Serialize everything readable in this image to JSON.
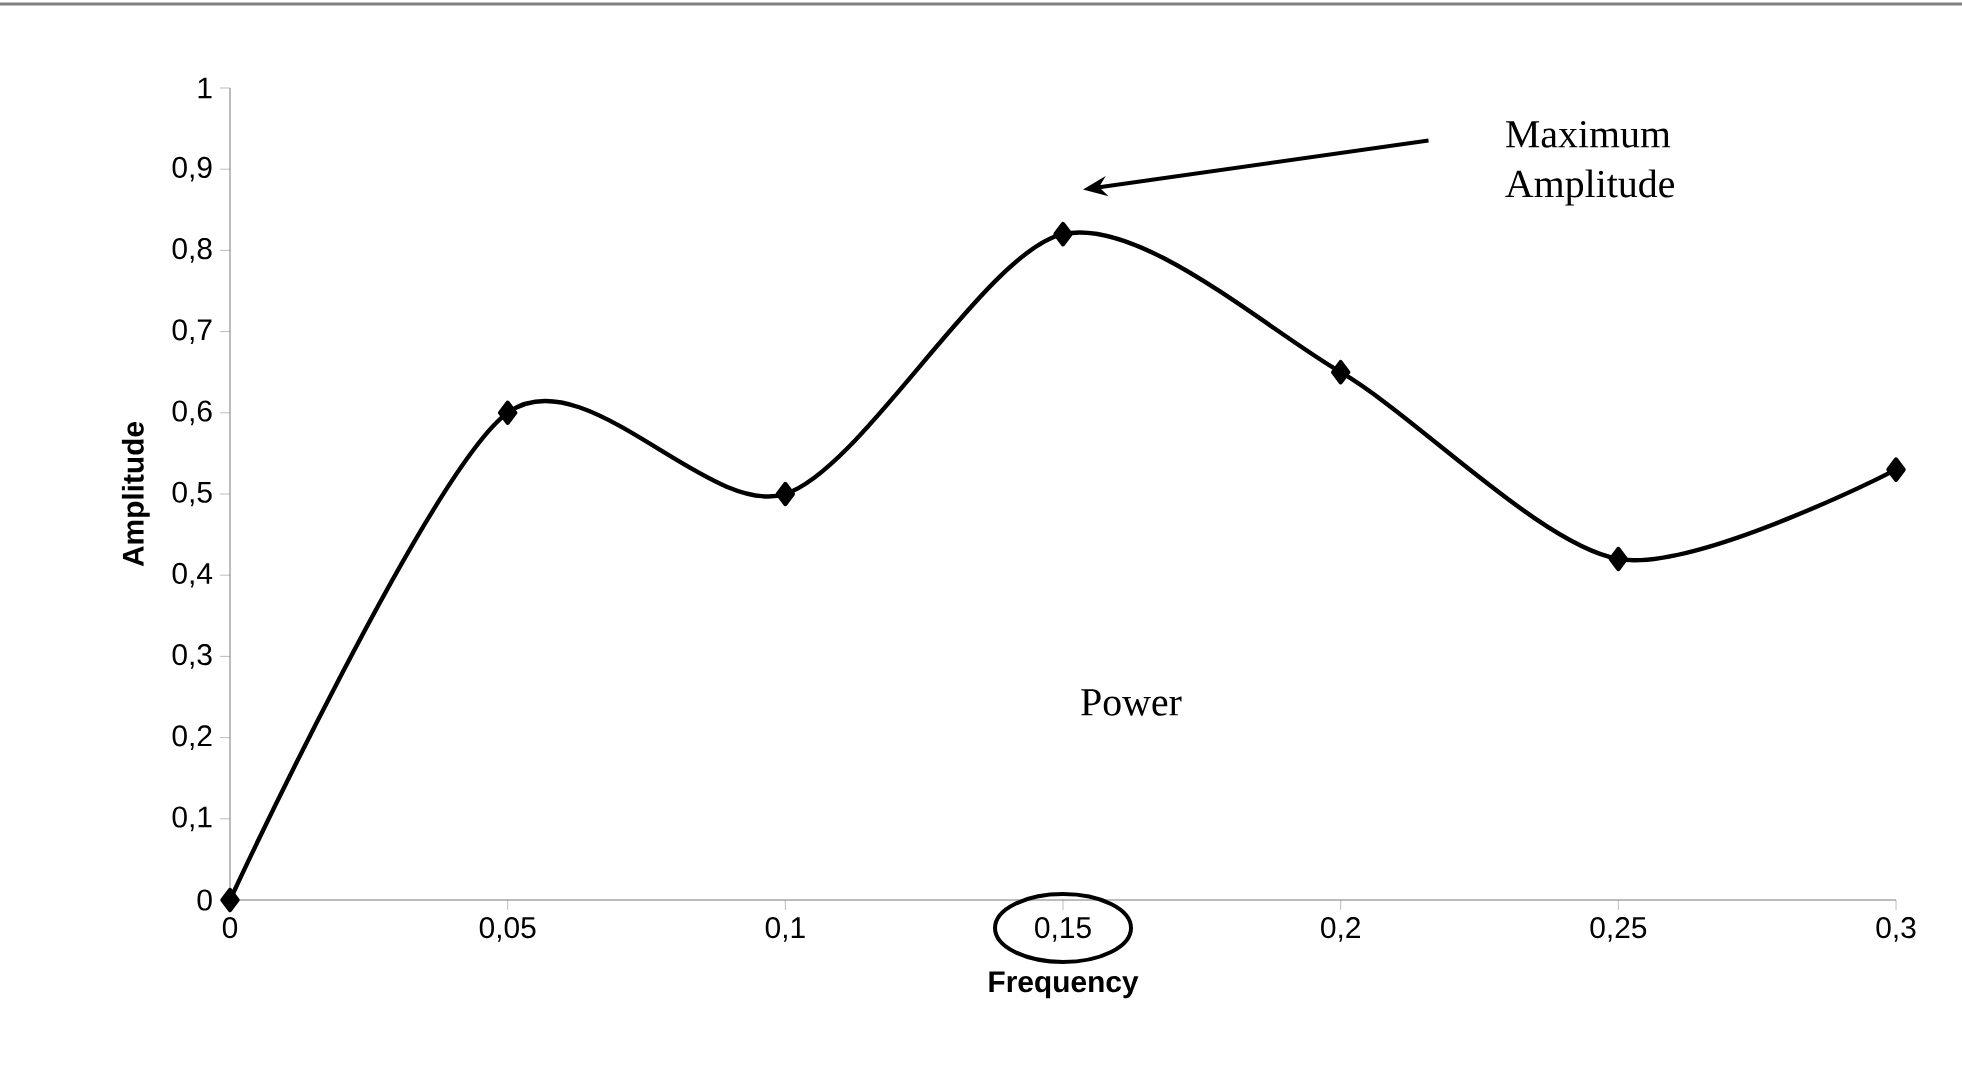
{
  "chart_data": {
    "type": "line",
    "xlabel": "Frequency",
    "ylabel": "Amplitude",
    "x": [
      0,
      0.05,
      0.1,
      0.15,
      0.2,
      0.25,
      0.3
    ],
    "series": [
      {
        "color": "#000000",
        "values": [
          0,
          0.6,
          0.5,
          0.82,
          0.65,
          0.42,
          0.53
        ]
      }
    ],
    "marker": "diamond",
    "line_style": "solid",
    "xlim": [
      0,
      0.3
    ],
    "xticks": [
      {
        "value": 0,
        "label": "0"
      },
      {
        "value": 0.05,
        "label": "0,05"
      },
      {
        "value": 0.1,
        "label": "0,1"
      },
      {
        "value": 0.15,
        "label": "0,15"
      },
      {
        "value": 0.2,
        "label": "0,2"
      },
      {
        "value": 0.25,
        "label": "0,25"
      },
      {
        "value": 0.3,
        "label": "0,3"
      }
    ],
    "ylim": [
      0,
      1
    ],
    "yticks": [
      {
        "value": 0,
        "label": "0"
      },
      {
        "value": 0.1,
        "label": "0,1"
      },
      {
        "value": 0.2,
        "label": "0,2"
      },
      {
        "value": 0.3,
        "label": "0,3"
      },
      {
        "value": 0.4,
        "label": "0,4"
      },
      {
        "value": 0.5,
        "label": "0,5"
      },
      {
        "value": 0.6,
        "label": "0,6"
      },
      {
        "value": 0.7,
        "label": "0,7"
      },
      {
        "value": 0.8,
        "label": "0,8"
      },
      {
        "value": 0.9,
        "label": "0,9"
      },
      {
        "value": 1,
        "label": "1"
      }
    ],
    "annotations": [
      "Maximum Amplitude",
      "Power"
    ]
  }
}
